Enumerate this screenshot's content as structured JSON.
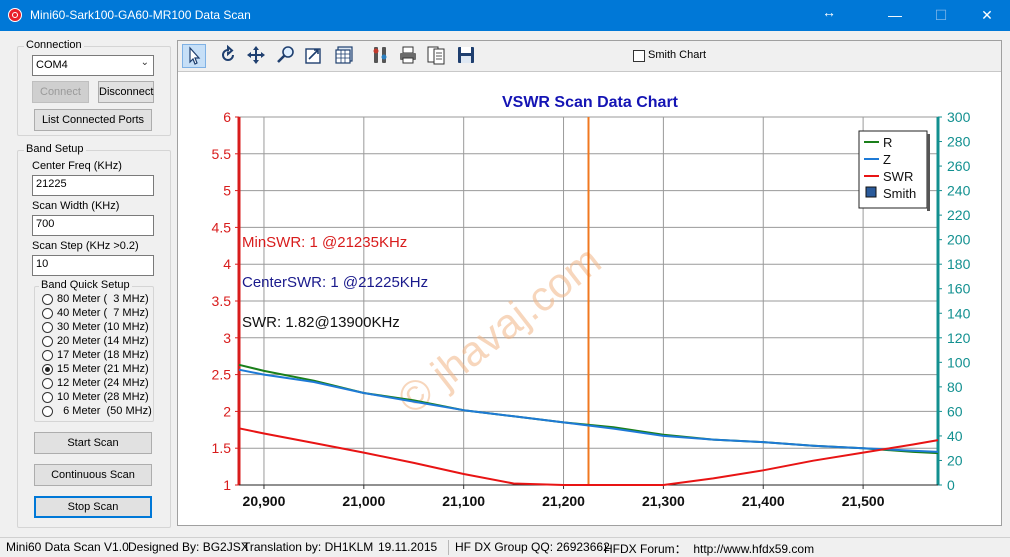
{
  "window": {
    "title": "Mini60-Sark100-GA60-MR100 Data Scan",
    "resize_glyph": "↔",
    "minimize": "—",
    "maximize": "☐",
    "close": "✕"
  },
  "connection": {
    "group_title": "Connection",
    "port_value": "COM4",
    "connect_label": "Connect",
    "disconnect_label": "Disconnect",
    "list_ports_label": "List Connected Ports"
  },
  "band_setup": {
    "group_title": "Band Setup",
    "center_freq_label": "Center Freq  (KHz)",
    "center_freq_value": "21225",
    "scan_width_label": "Scan Width   (KHz)",
    "scan_width_value": "700",
    "scan_step_label": "Scan Step     (KHz >0.2)",
    "scan_step_value": "10",
    "quick_title": "Band Quick Setup",
    "bands": [
      {
        "label": "80 Meter (  3 MHz)",
        "checked": false
      },
      {
        "label": "40 Meter (  7 MHz)",
        "checked": false
      },
      {
        "label": "30 Meter (10 MHz)",
        "checked": false
      },
      {
        "label": "20 Meter (14 MHz)",
        "checked": false
      },
      {
        "label": "17 Meter (18 MHz)",
        "checked": false
      },
      {
        "label": "15 Meter (21 MHz)",
        "checked": true
      },
      {
        "label": "12 Meter (24 MHz)",
        "checked": false
      },
      {
        "label": "10 Meter (28 MHz)",
        "checked": false
      },
      {
        "label": "  6 Meter  (50 MHz)",
        "checked": false
      }
    ],
    "start_scan_label": "Start Scan",
    "continuous_scan_label": "Continuous Scan",
    "stop_scan_label": "Stop Scan"
  },
  "toolbar": {
    "tools": [
      "pointer-icon",
      "rotate-icon",
      "move-icon",
      "zoom-icon",
      "chart-export-icon",
      "grid-icon",
      "settings-icon",
      "print-icon",
      "print-preview-icon",
      "save-icon"
    ],
    "smith_chart_label": "Smith Chart",
    "smith_chart_checked": false
  },
  "chart_data": {
    "type": "line",
    "title": "VSWR Scan Data Chart",
    "x_ticks": [
      "20,900",
      "21,000",
      "21,100",
      "21,200",
      "21,300",
      "21,400",
      "21,500"
    ],
    "xlim": [
      20875,
      21575
    ],
    "ylim_left": [
      1,
      6
    ],
    "y_ticks_left": [
      "1",
      "1.5",
      "2",
      "2.5",
      "3",
      "3.5",
      "4",
      "4.5",
      "5",
      "5.5",
      "6"
    ],
    "ylim_right": [
      0,
      300
    ],
    "y_ticks_right": [
      "0",
      "20",
      "40",
      "60",
      "80",
      "100",
      "120",
      "140",
      "160",
      "180",
      "200",
      "220",
      "240",
      "260",
      "280",
      "300"
    ],
    "grid": true,
    "legend_position": "top-right",
    "legend": [
      "R",
      "Z",
      "SWR",
      "Smith"
    ],
    "colors": {
      "R": "#1a7f1a",
      "Z": "#1e7ad6",
      "SWR": "#e81414",
      "marker": "#f07820",
      "left_axis": "#d81c1c",
      "right_axis": "#129090",
      "title": "#1414b4"
    },
    "center_marker_x": 21225,
    "annotations": {
      "min_swr": "MinSWR: 1 @21235KHz",
      "center_swr": "CenterSWR: 1 @21225KHz",
      "swr": "SWR: 1.82@13900KHz"
    },
    "watermark": "© jhavaj.com",
    "series": [
      {
        "name": "R",
        "axis": "right",
        "x": [
          20875,
          20900,
          20950,
          21000,
          21050,
          21100,
          21150,
          21200,
          21250,
          21300,
          21350,
          21400,
          21450,
          21500,
          21550,
          21575
        ],
        "values": [
          98,
          93,
          85,
          75,
          69,
          61,
          56,
          51,
          47,
          41,
          37,
          35,
          32,
          30,
          27,
          26
        ]
      },
      {
        "name": "Z",
        "axis": "right",
        "x": [
          20875,
          20900,
          20950,
          21000,
          21050,
          21100,
          21150,
          21200,
          21250,
          21300,
          21350,
          21400,
          21450,
          21500,
          21550,
          21575
        ],
        "values": [
          94,
          90,
          84,
          75,
          68,
          61,
          56,
          51,
          46,
          40,
          37,
          35,
          32,
          30,
          28,
          27
        ]
      },
      {
        "name": "SWR",
        "axis": "left",
        "x": [
          20875,
          20900,
          20950,
          21000,
          21050,
          21100,
          21150,
          21200,
          21250,
          21300,
          21350,
          21400,
          21450,
          21500,
          21550,
          21575
        ],
        "values": [
          1.77,
          1.7,
          1.57,
          1.44,
          1.3,
          1.15,
          1.02,
          1.0,
          1.0,
          1.0,
          1.09,
          1.2,
          1.33,
          1.44,
          1.55,
          1.61
        ]
      }
    ]
  },
  "statusbar": {
    "version": "Mini60 Data Scan V1.0",
    "designer": "Designed By: BG2JSX",
    "translation": "Translation by: DH1KLM",
    "date": "19.11.2015",
    "qq": "HF DX Group QQ: 26923662",
    "forum": "HFDX Forum：  http://www.hfdx59.com"
  }
}
